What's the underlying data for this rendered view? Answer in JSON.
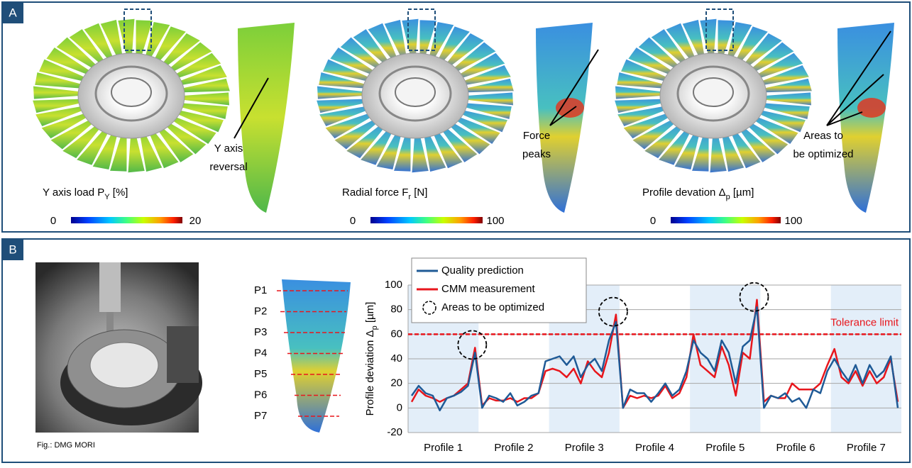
{
  "panel_a": {
    "label": "A",
    "colorbars": [
      {
        "label_main": "Y axis load P",
        "label_sub": "Y",
        "label_tail": " [%]",
        "min": 0,
        "max": 20
      },
      {
        "label_main": "Radial force F",
        "label_sub": "r",
        "label_tail": " [N]",
        "min": 0,
        "max": 100
      },
      {
        "label_main": "Profile devation Δ",
        "label_sub": "p",
        "label_tail": " [µm]",
        "min": 0,
        "max": 100
      }
    ],
    "annotations": [
      {
        "lines": [
          "Y axis",
          "reversal"
        ]
      },
      {
        "lines": [
          "Force",
          "peaks"
        ]
      },
      {
        "lines": [
          "Areas to",
          "be optimized"
        ]
      }
    ]
  },
  "panel_b": {
    "label": "B",
    "photo_credit": "Fig.: DMG MORI",
    "profile_markers": [
      "P1",
      "P2",
      "P3",
      "P4",
      "P5",
      "P6",
      "P7"
    ]
  },
  "chart_data": {
    "type": "line",
    "y_label_main": "Profile deviation Δ",
    "y_label_sub": "p",
    "y_label_tail": " [µm]",
    "profiles": [
      "Profile 1",
      "Profile 2",
      "Profile 3",
      "Profile 4",
      "Profile 5",
      "Profile 6",
      "Profile 7"
    ],
    "x": [
      0.05,
      0.15,
      0.25,
      0.35,
      0.45,
      0.55,
      0.65,
      0.75,
      0.85,
      0.95,
      1.05,
      1.15,
      1.25,
      1.35,
      1.45,
      1.55,
      1.65,
      1.75,
      1.85,
      1.95,
      2.05,
      2.15,
      2.25,
      2.35,
      2.45,
      2.55,
      2.65,
      2.75,
      2.85,
      2.95,
      3.05,
      3.15,
      3.25,
      3.35,
      3.45,
      3.55,
      3.65,
      3.75,
      3.85,
      3.95,
      4.05,
      4.15,
      4.25,
      4.35,
      4.45,
      4.55,
      4.65,
      4.75,
      4.85,
      4.95,
      5.05,
      5.15,
      5.25,
      5.35,
      5.45,
      5.55,
      5.65,
      5.75,
      5.85,
      5.95,
      6.05,
      6.15,
      6.25,
      6.35,
      6.45,
      6.55,
      6.65,
      6.75,
      6.85,
      6.95
    ],
    "xlim": [
      0,
      7
    ],
    "series": [
      {
        "name": "Quality prediction",
        "color": "#1f5a96",
        "values": [
          10,
          18,
          12,
          10,
          -2,
          8,
          10,
          13,
          18,
          45,
          0,
          10,
          8,
          5,
          12,
          2,
          5,
          10,
          12,
          38,
          40,
          42,
          35,
          42,
          25,
          35,
          40,
          30,
          55,
          70,
          0,
          15,
          12,
          12,
          5,
          12,
          20,
          10,
          15,
          30,
          55,
          45,
          40,
          30,
          55,
          45,
          20,
          50,
          55,
          82,
          0,
          10,
          8,
          12,
          5,
          8,
          0,
          15,
          12,
          30,
          40,
          30,
          22,
          35,
          20,
          35,
          25,
          30,
          42,
          0
        ]
      },
      {
        "name": "CMM measurement",
        "color": "#e8161c",
        "values": [
          5,
          15,
          10,
          8,
          5,
          8,
          10,
          15,
          20,
          49,
          2,
          8,
          6,
          6,
          8,
          5,
          8,
          8,
          12,
          30,
          32,
          30,
          25,
          32,
          20,
          38,
          30,
          25,
          45,
          76,
          0,
          10,
          8,
          10,
          8,
          10,
          18,
          8,
          12,
          25,
          60,
          35,
          30,
          25,
          50,
          35,
          10,
          45,
          40,
          88,
          5,
          10,
          8,
          8,
          20,
          15,
          15,
          15,
          20,
          35,
          48,
          25,
          20,
          30,
          18,
          30,
          20,
          25,
          40,
          5
        ]
      }
    ],
    "highlight_name": "Areas to be optimized",
    "tolerance": {
      "value": 60,
      "label": "Tolerance limit",
      "color": "#e8161c"
    },
    "ylim": [
      -20,
      100
    ],
    "yticks": [
      -20,
      0,
      20,
      40,
      60,
      80,
      100
    ],
    "grid": true
  }
}
